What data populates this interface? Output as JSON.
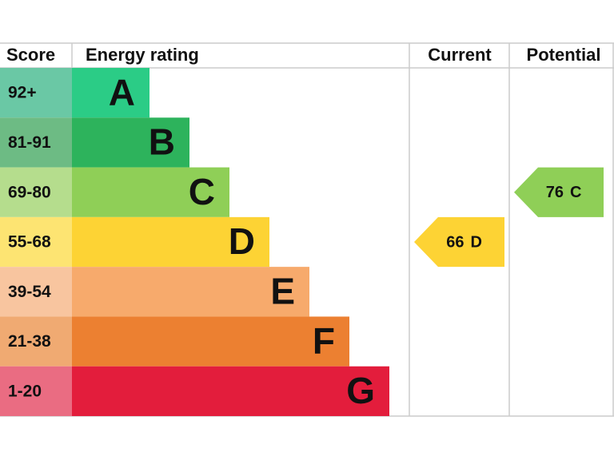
{
  "header": {
    "score": "Score",
    "energy_rating": "Energy rating",
    "current": "Current",
    "potential": "Potential"
  },
  "bands": [
    {
      "score": "92+",
      "letter": "A",
      "color": "#2bcc86",
      "score_color": "#6ac8a5"
    },
    {
      "score": "81-91",
      "letter": "B",
      "color": "#2db35c",
      "score_color": "#6dbb84"
    },
    {
      "score": "69-80",
      "letter": "C",
      "color": "#8fcf57",
      "score_color": "#b5dd8d"
    },
    {
      "score": "55-68",
      "letter": "D",
      "color": "#fdd334",
      "score_color": "#fde472"
    },
    {
      "score": "39-54",
      "letter": "E",
      "color": "#f7aa6c",
      "score_color": "#f8c59f"
    },
    {
      "score": "21-38",
      "letter": "F",
      "color": "#ec8031",
      "score_color": "#f0aa72"
    },
    {
      "score": "1-20",
      "letter": "G",
      "color": "#e31d3c",
      "score_color": "#ea6c82"
    }
  ],
  "current": {
    "score": 66,
    "rating": "D"
  },
  "potential": {
    "score": 76,
    "rating": "C"
  }
}
